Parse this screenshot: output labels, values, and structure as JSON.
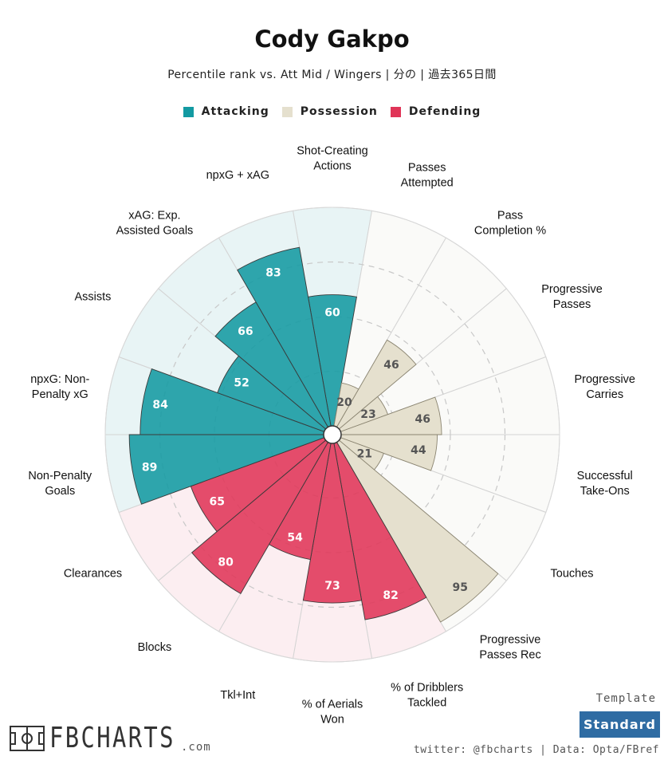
{
  "header": {
    "title": "Cody Gakpo",
    "subtitle": "Percentile rank vs. Att Mid / Wingers | 分の | 過去365日間"
  },
  "legend": [
    {
      "label": "Attacking",
      "color": "#139aa2"
    },
    {
      "label": "Possession",
      "color": "#e5e0ce"
    },
    {
      "label": "Defending",
      "color": "#e03558"
    }
  ],
  "chart_data": {
    "type": "polar-bar",
    "title": "Cody Gakpo",
    "rlim": [
      0,
      100
    ],
    "grid": true,
    "legend_position": "top",
    "categories": [
      {
        "label": [
          "Shot-Creating",
          "Actions"
        ],
        "value": 60,
        "group": "Attacking"
      },
      {
        "label": [
          "Passes",
          "Attempted"
        ],
        "value": 20,
        "group": "Possession"
      },
      {
        "label": [
          "Pass",
          "Completion %"
        ],
        "value": 46,
        "group": "Possession"
      },
      {
        "label": [
          "Progressive",
          "Passes"
        ],
        "value": 23,
        "group": "Possession"
      },
      {
        "label": [
          "Progressive",
          "Carries"
        ],
        "value": 46,
        "group": "Possession"
      },
      {
        "label": [
          "Successful",
          "Take-Ons"
        ],
        "value": 44,
        "group": "Possession"
      },
      {
        "label": [
          "Touches"
        ],
        "value": 21,
        "group": "Possession"
      },
      {
        "label": [
          "Progressive",
          "Passes Rec"
        ],
        "value": 95,
        "group": "Possession"
      },
      {
        "label": [
          "% of Dribblers",
          "Tackled"
        ],
        "value": 82,
        "group": "Defending"
      },
      {
        "label": [
          "% of Aerials",
          "Won"
        ],
        "value": 73,
        "group": "Defending"
      },
      {
        "label": [
          "Tkl+Int"
        ],
        "value": 54,
        "group": "Defending"
      },
      {
        "label": [
          "Blocks"
        ],
        "value": 80,
        "group": "Defending"
      },
      {
        "label": [
          "Clearances"
        ],
        "value": 65,
        "group": "Defending"
      },
      {
        "label": [
          "Non-Penalty",
          "Goals"
        ],
        "value": 89,
        "group": "Attacking"
      },
      {
        "label": [
          "npxG: Non-",
          "Penalty xG"
        ],
        "value": 84,
        "group": "Attacking"
      },
      {
        "label": [
          "Assists"
        ],
        "value": 52,
        "group": "Attacking"
      },
      {
        "label": [
          "xAG: Exp.",
          "Assisted Goals"
        ],
        "value": 66,
        "group": "Attacking"
      },
      {
        "label": [
          "npxG + xAG"
        ],
        "value": 83,
        "group": "Attacking"
      }
    ],
    "group_colors": {
      "Attacking": {
        "fill": "#139aa2",
        "bg": "#e8f4f5",
        "text": "#ffffff"
      },
      "Possession": {
        "fill": "#e5e0ce",
        "bg": "#fafaf8",
        "text": "#555555"
      },
      "Defending": {
        "fill": "#e03558",
        "bg": "#fceef1",
        "text": "#ffffff"
      }
    }
  },
  "footer": {
    "logo_text": "FBCHARTS",
    "logo_suffix": ".com",
    "template_label": "Template",
    "template_value": "Standard",
    "credit": "twitter: @fbcharts | Data: Opta/FBref"
  }
}
